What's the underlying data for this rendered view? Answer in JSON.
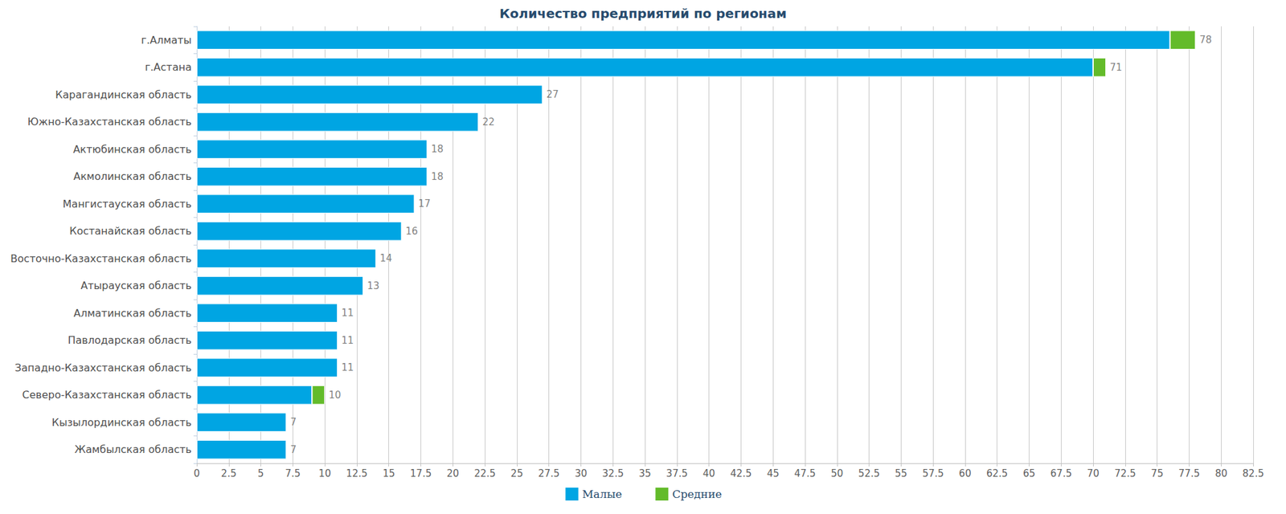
{
  "chart_data": {
    "type": "bar",
    "title": "Количество предприятий по регионам",
    "orientation": "horizontal",
    "stacked": true,
    "data_labels": true,
    "legend": "bottom",
    "grid": true,
    "categories": [
      "г.Алматы",
      "г.Астана",
      "Карагандинская область",
      "Южно-Казахстанская область",
      "Актюбинская область",
      "Акмолинская область",
      "Мангистауская область",
      "Костанайская область",
      "Восточно-Казахстанская область",
      "Атырауская область",
      "Алматинская область",
      "Павлодарская область",
      "Западно-Казахстанская область",
      "Северо-Казахстанская область",
      "Кызылординская область",
      "Жамбылская область"
    ],
    "series": [
      {
        "name": "Малые",
        "color": "#00a5e3",
        "values": [
          76,
          70,
          27,
          22,
          18,
          18,
          17,
          16,
          14,
          13,
          11,
          11,
          11,
          9,
          7,
          7
        ]
      },
      {
        "name": "Средние",
        "color": "#63bb2a",
        "values": [
          2,
          1,
          0,
          0,
          0,
          0,
          0,
          0,
          0,
          0,
          0,
          0,
          0,
          1,
          0,
          0
        ]
      }
    ],
    "totals": [
      78,
      71,
      27,
      22,
      18,
      18,
      17,
      16,
      14,
      13,
      11,
      11,
      11,
      10,
      7,
      7
    ],
    "xlim": [
      0,
      82.5
    ],
    "xticks": [
      0,
      2.5,
      5,
      7.5,
      10,
      12.5,
      15,
      17.5,
      20,
      22.5,
      25,
      27.5,
      30,
      32.5,
      35,
      37.5,
      40,
      42.5,
      45,
      47.5,
      50,
      52.5,
      55,
      57.5,
      60,
      62.5,
      65,
      67.5,
      70,
      72.5,
      75,
      77.5,
      80,
      82.5
    ]
  }
}
